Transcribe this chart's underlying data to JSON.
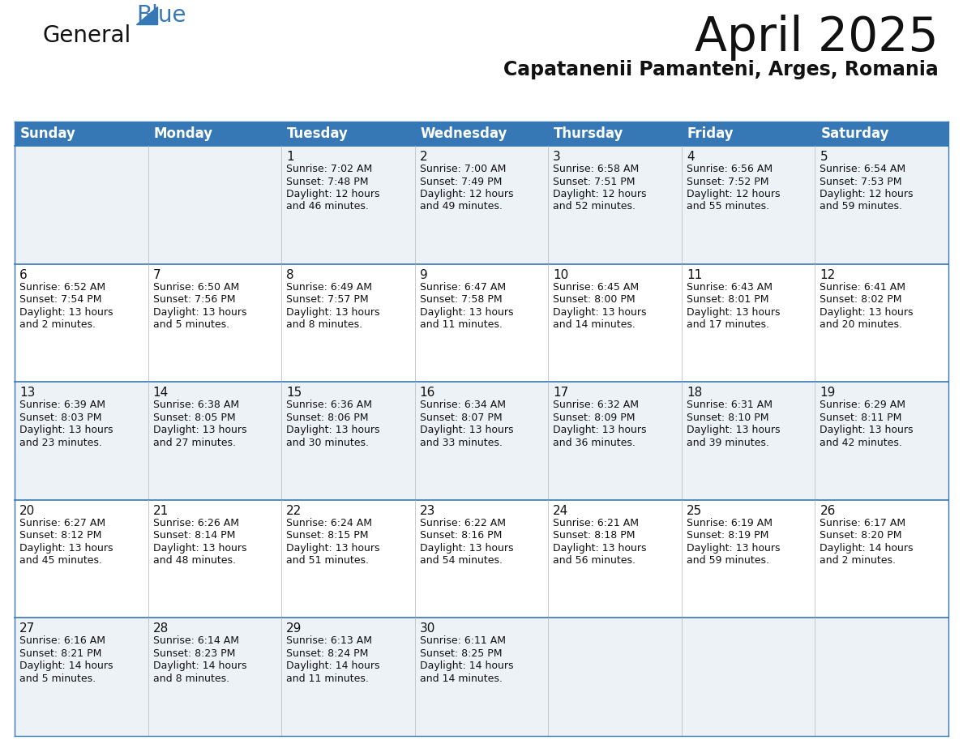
{
  "title": "April 2025",
  "subtitle": "Capatanenii Pamanteni, Arges, Romania",
  "header_bg_color": "#3578b5",
  "header_text_color": "#ffffff",
  "row_bg_odd": "#edf2f7",
  "row_bg_even": "#ffffff",
  "border_color": "#3578b5",
  "row_line_color": "#3578b5",
  "cell_line_color": "#c0c0c0",
  "days_of_week": [
    "Sunday",
    "Monday",
    "Tuesday",
    "Wednesday",
    "Thursday",
    "Friday",
    "Saturday"
  ],
  "title_fontsize": 42,
  "subtitle_fontsize": 17,
  "header_fontsize": 12,
  "day_num_fontsize": 11,
  "info_fontsize": 9,
  "weeks": [
    [
      {
        "day": "",
        "info": ""
      },
      {
        "day": "",
        "info": ""
      },
      {
        "day": "1",
        "info": "Sunrise: 7:02 AM\nSunset: 7:48 PM\nDaylight: 12 hours\nand 46 minutes."
      },
      {
        "day": "2",
        "info": "Sunrise: 7:00 AM\nSunset: 7:49 PM\nDaylight: 12 hours\nand 49 minutes."
      },
      {
        "day": "3",
        "info": "Sunrise: 6:58 AM\nSunset: 7:51 PM\nDaylight: 12 hours\nand 52 minutes."
      },
      {
        "day": "4",
        "info": "Sunrise: 6:56 AM\nSunset: 7:52 PM\nDaylight: 12 hours\nand 55 minutes."
      },
      {
        "day": "5",
        "info": "Sunrise: 6:54 AM\nSunset: 7:53 PM\nDaylight: 12 hours\nand 59 minutes."
      }
    ],
    [
      {
        "day": "6",
        "info": "Sunrise: 6:52 AM\nSunset: 7:54 PM\nDaylight: 13 hours\nand 2 minutes."
      },
      {
        "day": "7",
        "info": "Sunrise: 6:50 AM\nSunset: 7:56 PM\nDaylight: 13 hours\nand 5 minutes."
      },
      {
        "day": "8",
        "info": "Sunrise: 6:49 AM\nSunset: 7:57 PM\nDaylight: 13 hours\nand 8 minutes."
      },
      {
        "day": "9",
        "info": "Sunrise: 6:47 AM\nSunset: 7:58 PM\nDaylight: 13 hours\nand 11 minutes."
      },
      {
        "day": "10",
        "info": "Sunrise: 6:45 AM\nSunset: 8:00 PM\nDaylight: 13 hours\nand 14 minutes."
      },
      {
        "day": "11",
        "info": "Sunrise: 6:43 AM\nSunset: 8:01 PM\nDaylight: 13 hours\nand 17 minutes."
      },
      {
        "day": "12",
        "info": "Sunrise: 6:41 AM\nSunset: 8:02 PM\nDaylight: 13 hours\nand 20 minutes."
      }
    ],
    [
      {
        "day": "13",
        "info": "Sunrise: 6:39 AM\nSunset: 8:03 PM\nDaylight: 13 hours\nand 23 minutes."
      },
      {
        "day": "14",
        "info": "Sunrise: 6:38 AM\nSunset: 8:05 PM\nDaylight: 13 hours\nand 27 minutes."
      },
      {
        "day": "15",
        "info": "Sunrise: 6:36 AM\nSunset: 8:06 PM\nDaylight: 13 hours\nand 30 minutes."
      },
      {
        "day": "16",
        "info": "Sunrise: 6:34 AM\nSunset: 8:07 PM\nDaylight: 13 hours\nand 33 minutes."
      },
      {
        "day": "17",
        "info": "Sunrise: 6:32 AM\nSunset: 8:09 PM\nDaylight: 13 hours\nand 36 minutes."
      },
      {
        "day": "18",
        "info": "Sunrise: 6:31 AM\nSunset: 8:10 PM\nDaylight: 13 hours\nand 39 minutes."
      },
      {
        "day": "19",
        "info": "Sunrise: 6:29 AM\nSunset: 8:11 PM\nDaylight: 13 hours\nand 42 minutes."
      }
    ],
    [
      {
        "day": "20",
        "info": "Sunrise: 6:27 AM\nSunset: 8:12 PM\nDaylight: 13 hours\nand 45 minutes."
      },
      {
        "day": "21",
        "info": "Sunrise: 6:26 AM\nSunset: 8:14 PM\nDaylight: 13 hours\nand 48 minutes."
      },
      {
        "day": "22",
        "info": "Sunrise: 6:24 AM\nSunset: 8:15 PM\nDaylight: 13 hours\nand 51 minutes."
      },
      {
        "day": "23",
        "info": "Sunrise: 6:22 AM\nSunset: 8:16 PM\nDaylight: 13 hours\nand 54 minutes."
      },
      {
        "day": "24",
        "info": "Sunrise: 6:21 AM\nSunset: 8:18 PM\nDaylight: 13 hours\nand 56 minutes."
      },
      {
        "day": "25",
        "info": "Sunrise: 6:19 AM\nSunset: 8:19 PM\nDaylight: 13 hours\nand 59 minutes."
      },
      {
        "day": "26",
        "info": "Sunrise: 6:17 AM\nSunset: 8:20 PM\nDaylight: 14 hours\nand 2 minutes."
      }
    ],
    [
      {
        "day": "27",
        "info": "Sunrise: 6:16 AM\nSunset: 8:21 PM\nDaylight: 14 hours\nand 5 minutes."
      },
      {
        "day": "28",
        "info": "Sunrise: 6:14 AM\nSunset: 8:23 PM\nDaylight: 14 hours\nand 8 minutes."
      },
      {
        "day": "29",
        "info": "Sunrise: 6:13 AM\nSunset: 8:24 PM\nDaylight: 14 hours\nand 11 minutes."
      },
      {
        "day": "30",
        "info": "Sunrise: 6:11 AM\nSunset: 8:25 PM\nDaylight: 14 hours\nand 14 minutes."
      },
      {
        "day": "",
        "info": ""
      },
      {
        "day": "",
        "info": ""
      },
      {
        "day": "",
        "info": ""
      }
    ]
  ],
  "logo_general_color": "#1a1a1a",
  "logo_blue_color": "#3578b5",
  "logo_triangle_color": "#3578b5"
}
